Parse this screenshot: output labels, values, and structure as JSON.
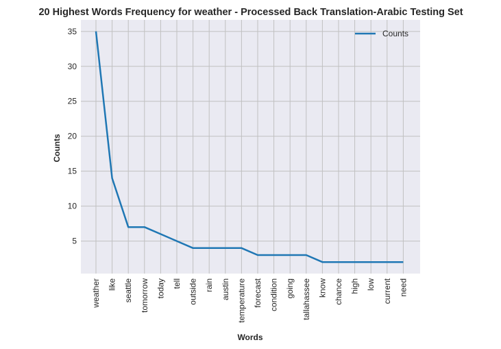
{
  "chart_data": {
    "type": "line",
    "title": "20 Highest Words Frequency for weather - Processed Back Translation-Arabic Testing Set",
    "xlabel": "Words",
    "ylabel": "Counts",
    "categories": [
      "weather",
      "like",
      "seattle",
      "tomorrow",
      "today",
      "tell",
      "outside",
      "rain",
      "austin",
      "temperature",
      "forecast",
      "condition",
      "going",
      "tallahassee",
      "know",
      "chance",
      "high",
      "low",
      "current",
      "need"
    ],
    "series": [
      {
        "name": "Counts",
        "values": [
          35,
          14,
          7,
          7,
          6,
          5,
          4,
          4,
          4,
          4,
          3,
          3,
          3,
          3,
          2,
          2,
          2,
          2,
          2,
          2
        ]
      }
    ],
    "yticks": [
      5,
      10,
      15,
      20,
      25,
      30,
      35
    ],
    "ylim": [
      0.35,
      36.65
    ],
    "grid": true,
    "legend": "top-right",
    "colors": {
      "line": "#1f77b4",
      "plot_bg": "#eaeaf2",
      "grid": "#c0c0c0"
    }
  }
}
